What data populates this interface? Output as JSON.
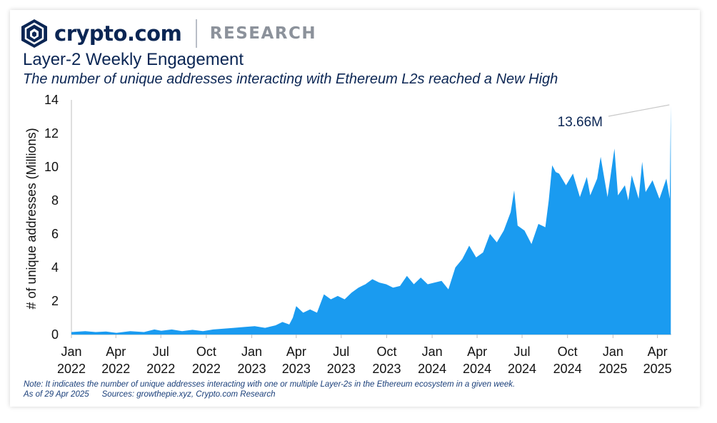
{
  "brand": {
    "name": "crypto.com",
    "section": "RESEARCH",
    "logo_icon": "crypto-com-lion-shield-icon",
    "colors": {
      "navy": "#0b2654",
      "grey": "#8c929b"
    }
  },
  "header": {
    "title": "Layer-2 Weekly Engagement",
    "subtitle": "The number of unique addresses interacting with Ethereum L2s reached a New High"
  },
  "footer": {
    "note": "Note: It indicates the number of unique addresses interacting with one or multiple Layer-2s in the Ethereum ecosystem in a given week.",
    "as_of": "As of 29 Apr 2025",
    "sources": "Sources: growthepie.xyz, Crypto.com Research"
  },
  "chart_data": {
    "type": "area",
    "title": "",
    "xlabel": "",
    "ylabel": "# of unique addresses (Millions)",
    "ylim": [
      0,
      14
    ],
    "yticks": [
      0,
      2,
      4,
      6,
      8,
      10,
      12,
      14
    ],
    "xlim": [
      "2022-01-01",
      "2025-04-29"
    ],
    "grid": false,
    "legend": "none",
    "fill_color": "#1a9bf0",
    "xticks": [
      {
        "date": "2022-01-01",
        "line1": "Jan",
        "line2": "2022"
      },
      {
        "date": "2022-04-01",
        "line1": "Apr",
        "line2": "2022"
      },
      {
        "date": "2022-07-01",
        "line1": "Jul",
        "line2": "2022"
      },
      {
        "date": "2022-10-01",
        "line1": "Oct",
        "line2": "2022"
      },
      {
        "date": "2023-01-01",
        "line1": "Jan",
        "line2": "2023"
      },
      {
        "date": "2023-04-01",
        "line1": "Apr",
        "line2": "2023"
      },
      {
        "date": "2023-07-01",
        "line1": "Jul",
        "line2": "2023"
      },
      {
        "date": "2023-10-01",
        "line1": "Oct",
        "line2": "2023"
      },
      {
        "date": "2024-01-01",
        "line1": "Jan",
        "line2": "2024"
      },
      {
        "date": "2024-04-01",
        "line1": "Apr",
        "line2": "2024"
      },
      {
        "date": "2024-07-01",
        "line1": "Jul",
        "line2": "2024"
      },
      {
        "date": "2024-10-01",
        "line1": "Oct",
        "line2": "2024"
      },
      {
        "date": "2025-01-01",
        "line1": "Jan",
        "line2": "2025"
      },
      {
        "date": "2025-04-01",
        "line1": "Apr",
        "line2": "2025"
      }
    ],
    "annotation": {
      "text": "13.66M",
      "date": "2025-04-28",
      "value": 13.66
    },
    "series": [
      {
        "x": [
          "2022-01-01",
          "2022-01-29",
          "2022-02-19",
          "2022-03-12",
          "2022-04-02",
          "2022-04-30",
          "2022-05-28",
          "2022-06-18",
          "2022-07-02",
          "2022-07-23",
          "2022-08-13",
          "2022-09-03",
          "2022-09-24",
          "2022-10-15",
          "2022-11-05",
          "2022-11-26",
          "2022-12-17",
          "2023-01-07",
          "2023-01-28",
          "2023-02-18",
          "2023-03-04",
          "2023-03-18",
          "2023-03-25",
          "2023-04-01",
          "2023-04-15",
          "2023-04-29",
          "2023-05-13",
          "2023-05-27",
          "2023-06-10",
          "2023-06-24",
          "2023-07-08",
          "2023-07-22",
          "2023-08-05",
          "2023-08-19",
          "2023-09-02",
          "2023-09-16",
          "2023-09-30",
          "2023-10-14",
          "2023-10-28",
          "2023-11-11",
          "2023-11-25",
          "2023-12-09",
          "2023-12-23",
          "2024-01-06",
          "2024-01-20",
          "2024-02-03",
          "2024-02-17",
          "2024-03-02",
          "2024-03-16",
          "2024-03-30",
          "2024-04-13",
          "2024-04-27",
          "2024-05-11",
          "2024-05-25",
          "2024-06-08",
          "2024-06-15",
          "2024-06-22",
          "2024-07-06",
          "2024-07-20",
          "2024-08-03",
          "2024-08-17",
          "2024-08-24",
          "2024-08-31",
          "2024-09-07",
          "2024-09-14",
          "2024-09-28",
          "2024-10-12",
          "2024-10-26",
          "2024-11-09",
          "2024-11-16",
          "2024-11-30",
          "2024-12-07",
          "2024-12-21",
          "2025-01-04",
          "2025-01-11",
          "2025-01-25",
          "2025-02-01",
          "2025-02-08",
          "2025-02-22",
          "2025-03-01",
          "2025-03-08",
          "2025-03-22",
          "2025-04-05",
          "2025-04-19",
          "2025-04-26",
          "2025-04-28"
        ],
        "values": [
          0.15,
          0.2,
          0.15,
          0.18,
          0.1,
          0.2,
          0.15,
          0.3,
          0.22,
          0.3,
          0.2,
          0.28,
          0.2,
          0.3,
          0.35,
          0.4,
          0.45,
          0.5,
          0.4,
          0.55,
          0.75,
          0.6,
          1.0,
          1.7,
          1.3,
          1.5,
          1.3,
          2.4,
          2.1,
          2.3,
          2.1,
          2.5,
          2.8,
          3.0,
          3.3,
          3.1,
          3.0,
          2.8,
          2.9,
          3.5,
          3.0,
          3.4,
          3.0,
          3.1,
          3.2,
          2.7,
          4.0,
          4.5,
          5.3,
          4.6,
          4.9,
          6.0,
          5.5,
          6.2,
          7.3,
          8.6,
          6.5,
          6.2,
          5.4,
          6.6,
          6.4,
          8.0,
          10.1,
          9.7,
          9.6,
          8.9,
          9.6,
          8.2,
          9.4,
          8.3,
          9.3,
          10.6,
          8.2,
          11.1,
          8.3,
          8.9,
          8.0,
          9.5,
          8.1,
          10.3,
          8.5,
          9.2,
          8.1,
          9.3,
          8.1,
          13.66
        ]
      }
    ]
  }
}
